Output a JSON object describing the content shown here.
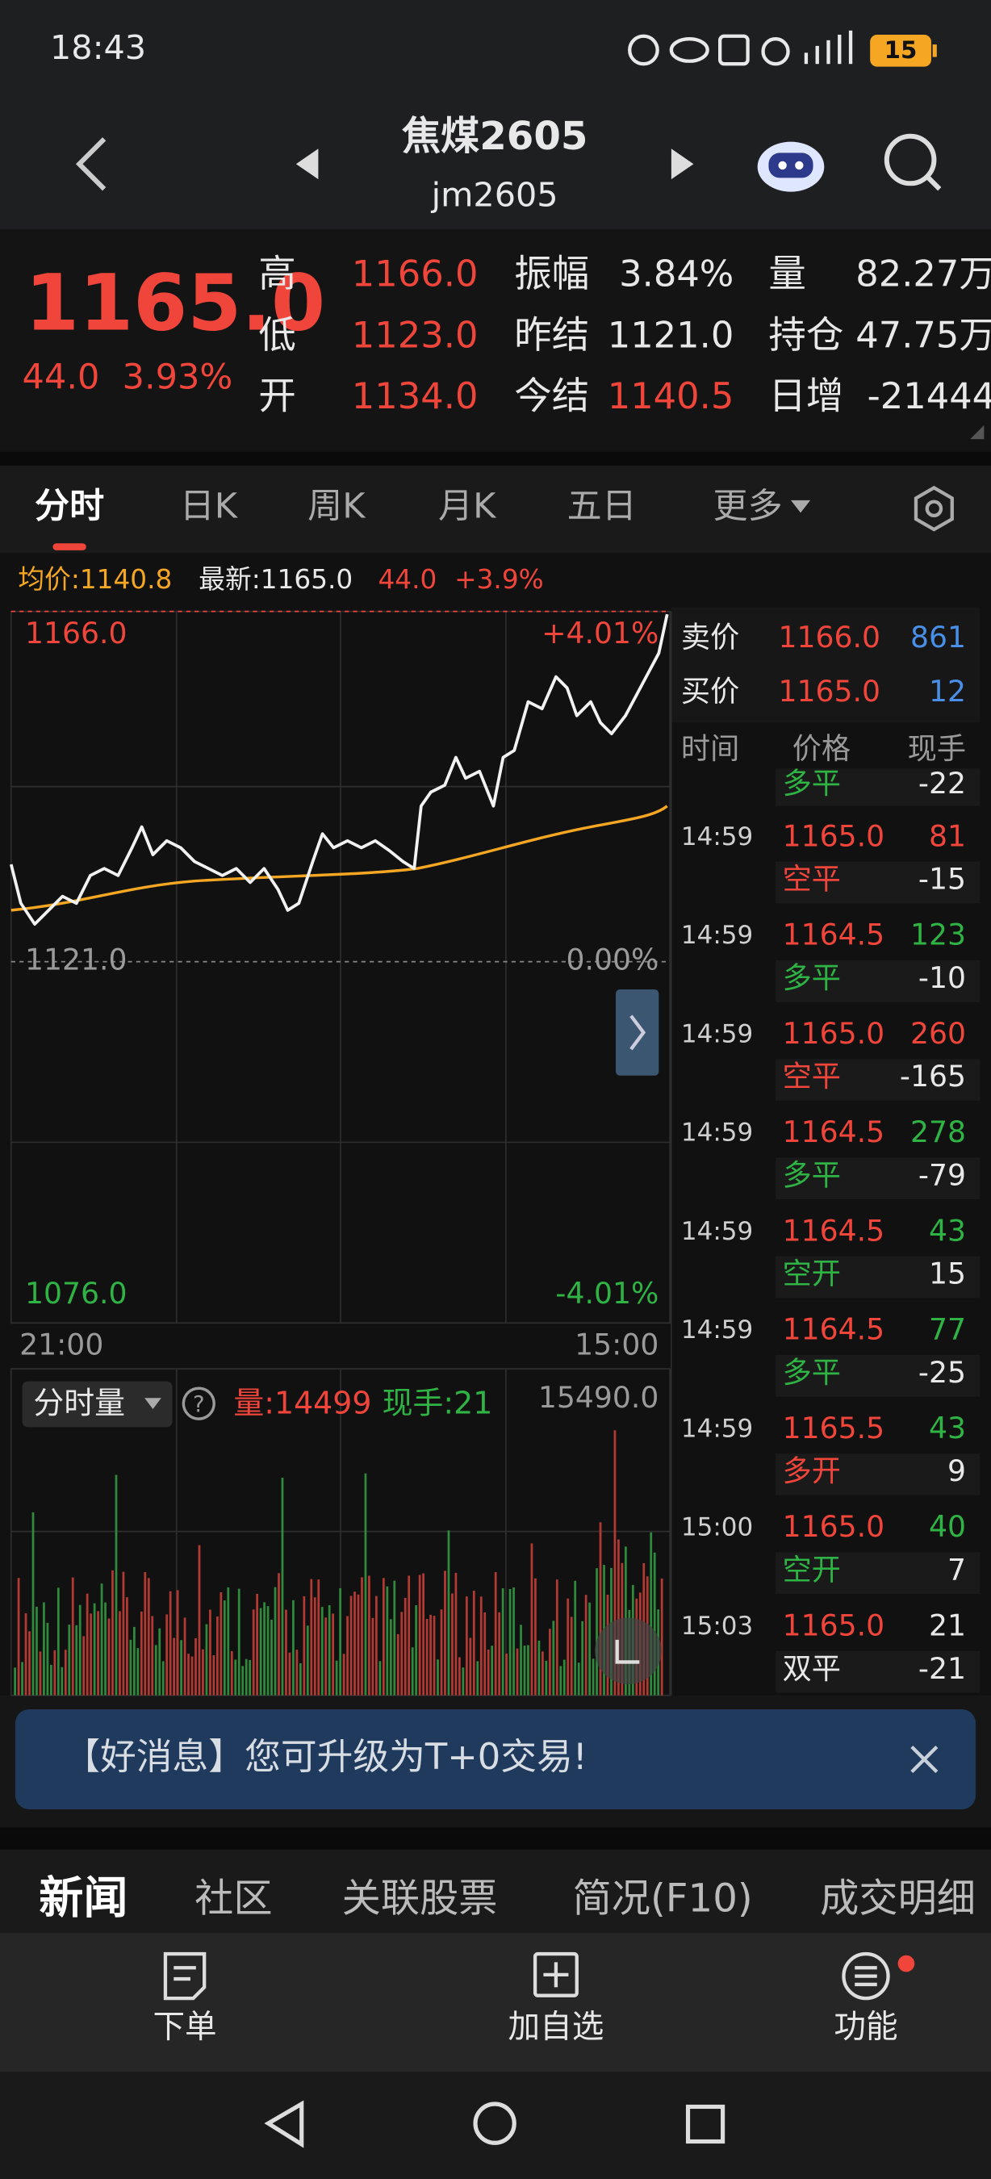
{
  "status_bar": {
    "time": "18:43",
    "battery": "15"
  },
  "header": {
    "title": "焦煤2605",
    "code": "jm2605"
  },
  "quote": {
    "price": "1165.0",
    "change": "44.0",
    "change_pct": "3.93%",
    "fields": [
      [
        {
          "label": "高",
          "value": "1166.0",
          "color": "#f0453a"
        },
        {
          "label": "低",
          "value": "1123.0",
          "color": "#f0453a"
        },
        {
          "label": "开",
          "value": "1134.0",
          "color": "#f0453a"
        }
      ],
      [
        {
          "label": "振幅",
          "value": "3.84%",
          "color": "#e8e8e8"
        },
        {
          "label": "昨结",
          "value": "1121.0",
          "color": "#e8e8e8"
        },
        {
          "label": "今结",
          "value": "1140.5",
          "color": "#f0453a"
        }
      ],
      [
        {
          "label": "量",
          "value": "82.27万",
          "color": "#e8e8e8"
        },
        {
          "label": "持仓",
          "value": "47.75万",
          "color": "#e8e8e8"
        },
        {
          "label": "日增",
          "value": "-21444",
          "color": "#e8e8e8"
        }
      ]
    ]
  },
  "tabs": [
    "分时",
    "日K",
    "周K",
    "月K",
    "五日",
    "更多"
  ],
  "info": {
    "avg": "均价:1140.8",
    "latest": "最新:1165.0",
    "change": "44.0",
    "pct": "+3.9%"
  },
  "chart": {
    "top_price": "1166.0",
    "top_pct": "+4.01%",
    "mid_price": "1121.0",
    "mid_pct": "0.00%",
    "low_price": "1076.0",
    "low_pct": "-4.01%",
    "start_time": "21:00",
    "end_time": "15:00"
  },
  "volume": {
    "label": "分时量",
    "help": "?",
    "vol": "量:14499",
    "hand": "现手:21",
    "max": "15490.0"
  },
  "order_book": [
    {
      "label": "卖价",
      "price": "1166.0",
      "qty": "861"
    },
    {
      "label": "买价",
      "price": "1165.0",
      "qty": "12"
    }
  ],
  "trade_headers": [
    "时间",
    "价格",
    "现手"
  ],
  "trade_partial": {
    "type": "多平",
    "hand": "-22",
    "type_color": "#2fb344"
  },
  "trades": [
    {
      "time": "14:59",
      "price": "1165.0",
      "vol": "81",
      "type": "空平",
      "hand": "-15",
      "vol_color": "#f0453a",
      "type_color": "#f0453a"
    },
    {
      "time": "14:59",
      "price": "1164.5",
      "vol": "123",
      "type": "多平",
      "hand": "-10",
      "vol_color": "#2fb344",
      "type_color": "#2fb344"
    },
    {
      "time": "14:59",
      "price": "1165.0",
      "vol": "260",
      "type": "空平",
      "hand": "-165",
      "vol_color": "#f0453a",
      "type_color": "#f0453a"
    },
    {
      "time": "14:59",
      "price": "1164.5",
      "vol": "278",
      "type": "多平",
      "hand": "-79",
      "vol_color": "#2fb344",
      "type_color": "#2fb344"
    },
    {
      "time": "14:59",
      "price": "1164.5",
      "vol": "43",
      "type": "空开",
      "hand": "15",
      "vol_color": "#2fb344",
      "type_color": "#2fb344"
    },
    {
      "time": "14:59",
      "price": "1164.5",
      "vol": "77",
      "type": "多平",
      "hand": "-25",
      "vol_color": "#2fb344",
      "type_color": "#2fb344"
    },
    {
      "time": "14:59",
      "price": "1165.5",
      "vol": "43",
      "type": "多开",
      "hand": "9",
      "vol_color": "#2fb344",
      "type_color": "#f0453a"
    },
    {
      "time": "15:00",
      "price": "1165.0",
      "vol": "40",
      "type": "空开",
      "hand": "7",
      "vol_color": "#2fb344",
      "type_color": "#2fb344"
    },
    {
      "time": "15:03",
      "price": "1165.0",
      "vol": "21",
      "type": "双平",
      "hand": "-21",
      "vol_color": "#e8e8e8",
      "type_color": "#e8e8e8"
    }
  ],
  "banner": "【好消息】您可升级为T+0交易!",
  "news_tabs": [
    "新闻",
    "社区",
    "关联股票",
    "简况(F10)",
    "成交明细"
  ],
  "toolbar": [
    "下单",
    "加自选",
    "功能"
  ]
}
